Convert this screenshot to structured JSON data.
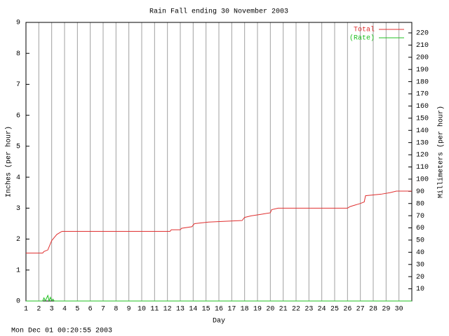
{
  "chart_data": {
    "type": "line",
    "title": "Rain Fall ending 30 November 2003",
    "x_label": "Day",
    "y_label": "Inches (per hour)",
    "y2_label": "Millimeters (per hour)",
    "footer": "Mon Dec 01 00:20:55 2003",
    "xlim": [
      1,
      31
    ],
    "xticks": [
      1,
      2,
      3,
      4,
      5,
      6,
      7,
      8,
      9,
      10,
      11,
      12,
      13,
      14,
      15,
      16,
      17,
      18,
      19,
      20,
      21,
      22,
      23,
      24,
      25,
      26,
      27,
      28,
      29,
      30
    ],
    "ylim": [
      0,
      9
    ],
    "yticks": [
      0,
      1,
      2,
      3,
      4,
      5,
      6,
      7,
      8,
      9
    ],
    "y2lim": [
      0,
      228.6
    ],
    "y2ticks": [
      10,
      20,
      30,
      40,
      50,
      60,
      70,
      80,
      90,
      100,
      110,
      120,
      130,
      140,
      150,
      160,
      170,
      180,
      190,
      200,
      210,
      220
    ],
    "grid": "x",
    "legend": "top-right",
    "series": [
      {
        "name": "Total",
        "color": "#e03030",
        "x": [
          1,
          2.3,
          2.4,
          2.7,
          2.8,
          3.0,
          3.2,
          3.4,
          3.6,
          3.8,
          12.2,
          12.3,
          13.0,
          13.1,
          13.9,
          14.1,
          15.2,
          17.8,
          18.0,
          18.5,
          19.3,
          20.0,
          20.1,
          20.6,
          26.0,
          26.2,
          26.6,
          27.0,
          27.3,
          27.4,
          28.6,
          29.3,
          29.8,
          31
        ],
        "values": [
          1.55,
          1.55,
          1.6,
          1.65,
          1.75,
          1.95,
          2.05,
          2.15,
          2.2,
          2.25,
          2.25,
          2.3,
          2.3,
          2.35,
          2.4,
          2.5,
          2.55,
          2.6,
          2.7,
          2.75,
          2.8,
          2.85,
          2.95,
          3.0,
          3.0,
          3.05,
          3.1,
          3.15,
          3.2,
          3.4,
          3.45,
          3.5,
          3.55,
          3.55
        ]
      },
      {
        "name": "(Rate)",
        "color": "#20c020",
        "x": [
          1,
          2.3,
          2.4,
          2.5,
          2.7,
          2.8,
          2.9,
          3.0,
          3.1,
          3.2,
          31
        ],
        "values": [
          0,
          0,
          0.1,
          0,
          0.18,
          0,
          0.12,
          0,
          0.06,
          0,
          0
        ]
      }
    ]
  }
}
